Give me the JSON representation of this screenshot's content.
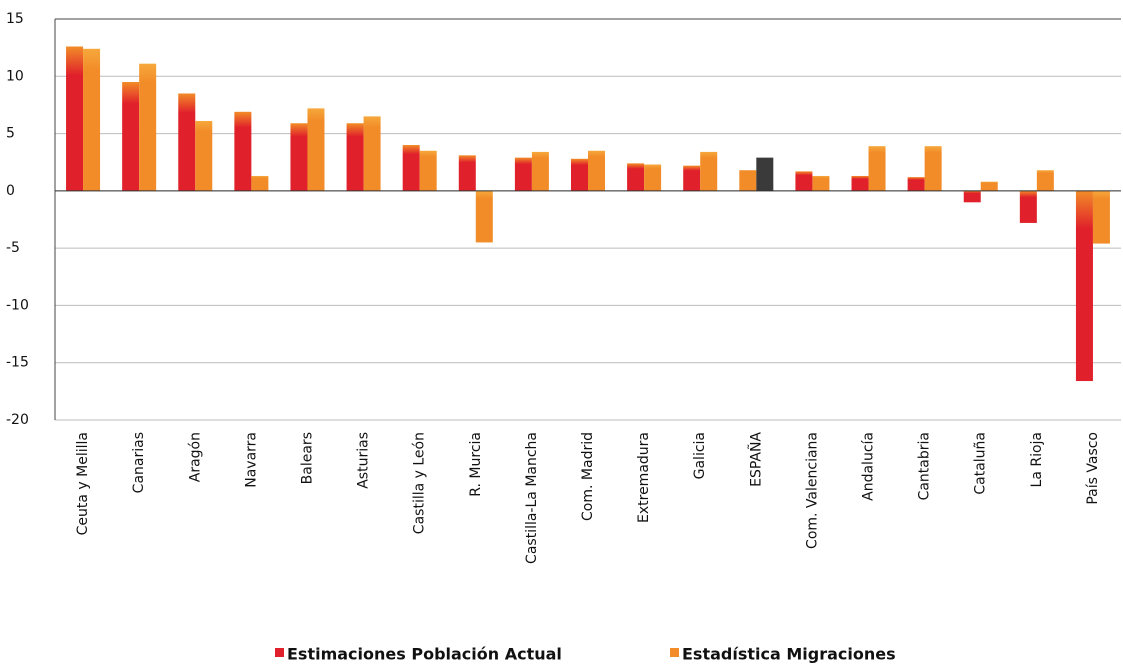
{
  "chart_data": {
    "type": "bar",
    "categories": [
      "Ceuta y Melilla",
      "Canarias",
      "Aragón",
      "Navarra",
      "Balears",
      "Asturias",
      "Castilla y León",
      "R. Murcia",
      "Castilla-La Mancha",
      "Com. Madrid",
      "Extremadura",
      "Galicia",
      "ESPAÑA",
      "Com. Valenciana",
      "Andalucía",
      "Cantabria",
      "Cataluña",
      "La Rioja",
      "País Vasco"
    ],
    "series": [
      {
        "name": "Estimaciones Población Actual",
        "color": "#e0202a",
        "values": [
          12.6,
          9.5,
          8.5,
          6.9,
          5.9,
          5.9,
          4.0,
          3.1,
          2.9,
          2.8,
          2.4,
          2.2,
          1.8,
          1.7,
          1.3,
          1.2,
          -1.0,
          -2.8,
          -16.6
        ]
      },
      {
        "name": "Estadística Migraciones",
        "color": "#f28c28",
        "values": [
          12.4,
          11.1,
          6.1,
          1.3,
          7.2,
          6.5,
          3.5,
          -4.5,
          3.4,
          3.5,
          2.3,
          3.4,
          2.9,
          1.3,
          3.9,
          3.9,
          0.8,
          1.8,
          -4.6
        ]
      }
    ],
    "highlight_index": 12,
    "highlight_colors": [
      "#f28c28",
      "#3a3a3a"
    ],
    "ylim": [
      -20,
      15
    ],
    "yticks": [
      -20,
      -15,
      -10,
      -5,
      0,
      5,
      10,
      15
    ],
    "grid": true
  }
}
